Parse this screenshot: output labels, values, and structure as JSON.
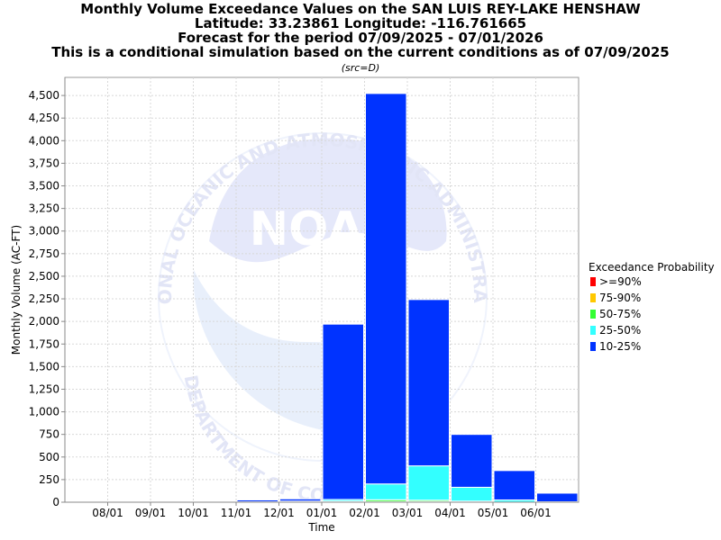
{
  "chart_data": {
    "type": "bar",
    "stacked": true,
    "title_lines": [
      "Monthly Volume Exceedance Values on the SAN LUIS REY-LAKE HENSHAW",
      "Latitude: 33.23861 Longitude: -116.761665",
      "Forecast for the period 07/09/2025 - 07/01/2026",
      "This is a conditional simulation based on the current conditions as of 07/09/2025"
    ],
    "subtitle": "(src=D)",
    "xlabel": "Time",
    "ylabel": "Monthly Volume (AC-FT)",
    "ylim": [
      0,
      4700
    ],
    "y_ticks": [
      0,
      250,
      500,
      750,
      1000,
      1250,
      1500,
      1750,
      2000,
      2250,
      2500,
      2750,
      3000,
      3250,
      3500,
      3750,
      4000,
      4250,
      4500
    ],
    "y_tick_labels": [
      "0",
      "250",
      "500",
      "750",
      "1,000",
      "1,250",
      "1,500",
      "1,750",
      "2,000",
      "2,250",
      "2,500",
      "2,750",
      "3,000",
      "3,250",
      "3,500",
      "3,750",
      "4,000",
      "4,250",
      "4,500"
    ],
    "categories": [
      "07/2025",
      "08/2025",
      "09/2025",
      "10/2025",
      "11/2025",
      "12/2025",
      "01/2026",
      "02/2026",
      "03/2026",
      "04/2026",
      "05/2026",
      "06/2026"
    ],
    "x_tick_labels": [
      "08/01",
      "09/01",
      "10/01",
      "11/01",
      "12/01",
      "01/01",
      "02/01",
      "03/01",
      "04/01",
      "05/01",
      "06/01"
    ],
    "grid": true,
    "legend_title": "Exceedance Probability",
    "legend_position": "right",
    "series": [
      {
        "name": ">=90%",
        "color": "#ff0000",
        "values": [
          0,
          0,
          0,
          0,
          0,
          0,
          0,
          2,
          2,
          1,
          0,
          0
        ]
      },
      {
        "name": "75-90%",
        "color": "#ffc800",
        "values": [
          0,
          0,
          0,
          0,
          0,
          0,
          1,
          5,
          5,
          3,
          0,
          0
        ]
      },
      {
        "name": "50-75%",
        "color": "#33ff33",
        "values": [
          0,
          0,
          0,
          0,
          0,
          2,
          10,
          20,
          15,
          8,
          2,
          0
        ]
      },
      {
        "name": "25-50%",
        "color": "#33ffff",
        "values": [
          0,
          2,
          2,
          2,
          5,
          10,
          19,
          175,
          380,
          153,
          23,
          5
        ]
      },
      {
        "name": "10-25%",
        "color": "#0033ff",
        "values": [
          0,
          8,
          8,
          8,
          20,
          25,
          1940,
          4320,
          1840,
          585,
          325,
          95
        ]
      }
    ]
  },
  "watermark": {
    "logo_text": "NOAA",
    "ring_text_top": "NATIONAL OCEANIC AND ATMOSPHERIC ADMINISTRATION",
    "ring_text_bottom": "U.S. DEPARTMENT OF COMMERCE"
  }
}
